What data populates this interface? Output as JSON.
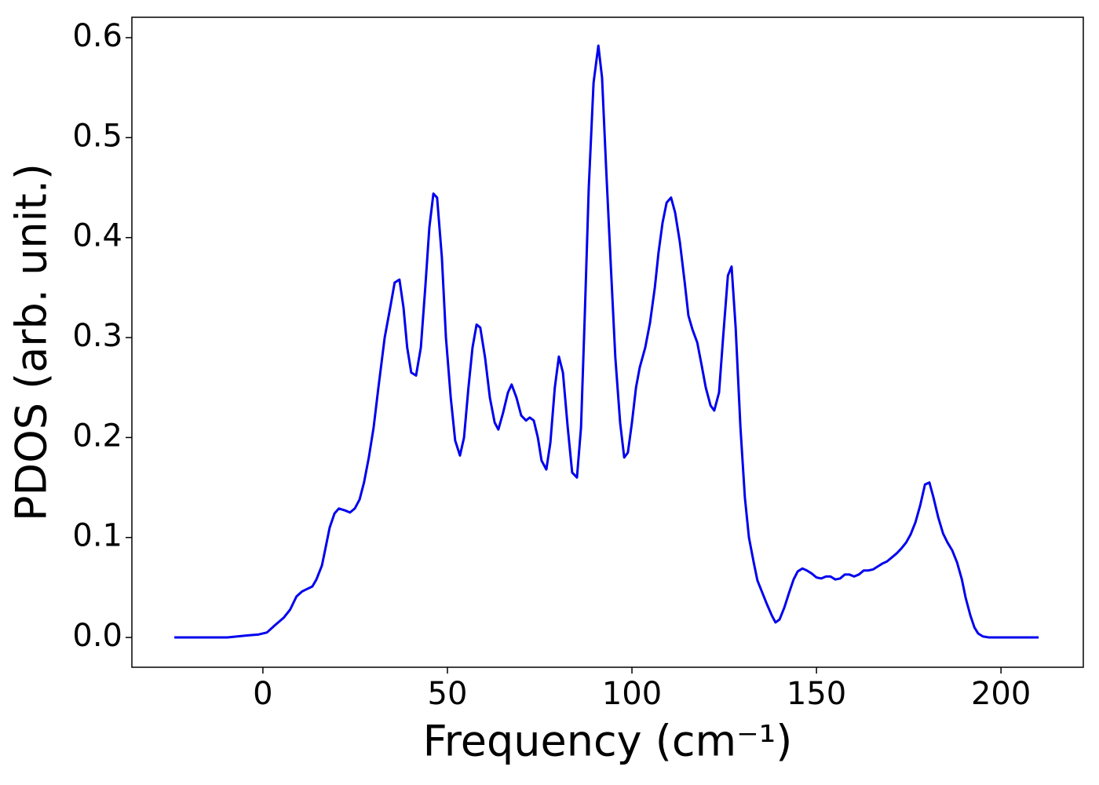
{
  "chart_data": {
    "type": "line",
    "xlabel": "Frequency (cm⁻¹)",
    "ylabel": "PDOS (arb. unit.)",
    "xlim": [
      -35.5,
      222.3
    ],
    "ylim": [
      -0.0298,
      0.6204
    ],
    "xticks": [
      0,
      50,
      100,
      150,
      200
    ],
    "yticks": [
      {
        "value": 0,
        "label": "0.0"
      },
      0.1,
      0.2,
      0.3,
      0.4,
      0.5,
      0.6
    ],
    "grid": false,
    "x": [
      -24.0,
      -9.6,
      -4.3,
      -1.1,
      1.1,
      3.2,
      5.7,
      7.4,
      9.1,
      10.6,
      11.7,
      13.4,
      14.5,
      16.0,
      17.0,
      18.1,
      19.4,
      20.6,
      22.3,
      23.6,
      24.9,
      26.2,
      27.4,
      28.7,
      30.0,
      31.3,
      33.0,
      34.5,
      35.7,
      37.0,
      38.1,
      39.1,
      40.2,
      41.5,
      42.8,
      44.0,
      45.1,
      46.2,
      47.2,
      48.5,
      49.6,
      50.9,
      52.1,
      53.4,
      54.5,
      55.7,
      56.8,
      57.9,
      58.9,
      60.2,
      61.5,
      62.8,
      63.8,
      65.1,
      66.4,
      67.4,
      68.7,
      70.0,
      71.3,
      72.3,
      73.4,
      74.5,
      75.5,
      76.8,
      77.9,
      79.1,
      80.2,
      81.3,
      82.6,
      83.8,
      85.1,
      86.2,
      87.2,
      88.3,
      89.6,
      90.9,
      91.9,
      93.0,
      94.3,
      95.5,
      96.8,
      97.9,
      98.9,
      100.0,
      101.1,
      102.1,
      103.6,
      104.9,
      106.2,
      107.2,
      108.3,
      109.4,
      110.6,
      111.7,
      113.0,
      114.3,
      115.3,
      116.4,
      117.7,
      118.9,
      120.0,
      121.3,
      122.3,
      123.6,
      124.7,
      126.0,
      127.0,
      128.1,
      129.4,
      130.6,
      131.7,
      133.0,
      134.0,
      135.3,
      136.6,
      137.9,
      138.9,
      140.0,
      141.3,
      142.6,
      143.8,
      144.9,
      146.2,
      147.4,
      148.7,
      150.0,
      151.3,
      152.6,
      153.8,
      155.1,
      156.4,
      157.7,
      158.9,
      160.2,
      161.5,
      162.8,
      164.0,
      165.3,
      166.6,
      167.9,
      169.1,
      170.4,
      171.7,
      173.0,
      174.3,
      175.5,
      176.8,
      178.1,
      179.4,
      180.6,
      181.7,
      183.0,
      184.3,
      185.5,
      186.8,
      188.1,
      189.4,
      190.4,
      191.7,
      192.8,
      193.8,
      195.1,
      196.8,
      210.2
    ],
    "series": [
      {
        "name": "PDOS",
        "color": "#0000ee",
        "values": [
          0,
          0,
          0.002,
          0.003,
          0.005,
          0.012,
          0.02,
          0.028,
          0.041,
          0.046,
          0.048,
          0.051,
          0.058,
          0.072,
          0.09,
          0.11,
          0.124,
          0.129,
          0.127,
          0.125,
          0.129,
          0.138,
          0.155,
          0.18,
          0.21,
          0.25,
          0.3,
          0.33,
          0.355,
          0.358,
          0.33,
          0.29,
          0.265,
          0.262,
          0.29,
          0.35,
          0.41,
          0.444,
          0.44,
          0.38,
          0.3,
          0.24,
          0.197,
          0.182,
          0.2,
          0.25,
          0.29,
          0.313,
          0.31,
          0.28,
          0.24,
          0.215,
          0.208,
          0.225,
          0.245,
          0.253,
          0.24,
          0.222,
          0.217,
          0.22,
          0.217,
          0.2,
          0.177,
          0.168,
          0.195,
          0.25,
          0.281,
          0.265,
          0.21,
          0.165,
          0.16,
          0.21,
          0.32,
          0.45,
          0.555,
          0.592,
          0.56,
          0.47,
          0.37,
          0.28,
          0.215,
          0.18,
          0.185,
          0.215,
          0.25,
          0.27,
          0.29,
          0.315,
          0.35,
          0.385,
          0.415,
          0.435,
          0.44,
          0.425,
          0.395,
          0.355,
          0.322,
          0.308,
          0.295,
          0.272,
          0.25,
          0.232,
          0.227,
          0.245,
          0.3,
          0.362,
          0.371,
          0.31,
          0.21,
          0.14,
          0.1,
          0.075,
          0.057,
          0.045,
          0.033,
          0.022,
          0.015,
          0.018,
          0.03,
          0.045,
          0.058,
          0.066,
          0.069,
          0.067,
          0.064,
          0.06,
          0.059,
          0.061,
          0.061,
          0.058,
          0.059,
          0.063,
          0.063,
          0.061,
          0.063,
          0.067,
          0.067,
          0.068,
          0.071,
          0.074,
          0.076,
          0.08,
          0.084,
          0.089,
          0.095,
          0.103,
          0.115,
          0.132,
          0.153,
          0.155,
          0.14,
          0.12,
          0.104,
          0.095,
          0.087,
          0.075,
          0.058,
          0.04,
          0.022,
          0.01,
          0.004,
          0.001,
          0,
          0
        ]
      }
    ]
  }
}
